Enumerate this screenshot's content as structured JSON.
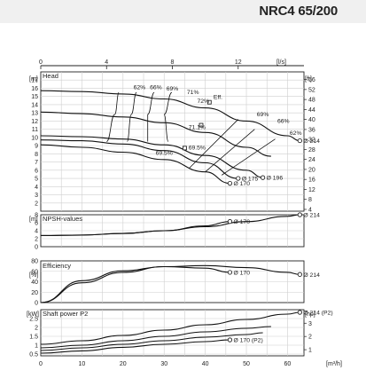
{
  "page": {
    "title": "NRC4 65/200"
  },
  "chart_data": [
    {
      "type": "line",
      "panel": "head",
      "title": "Head",
      "ylabel": "[m]",
      "ylabel_right": "[ft]",
      "xlim": [
        0,
        64
      ],
      "xlim_top": [
        0,
        16
      ],
      "ylim": [
        1,
        18
      ],
      "top_axis_label": "[l/s]",
      "top_ticks": [
        0,
        4,
        8,
        12
      ],
      "y_ticks": [
        2,
        3,
        4,
        5,
        6,
        7,
        8,
        9,
        10,
        11,
        12,
        13,
        14,
        15,
        16,
        17
      ],
      "y_ticks_right": [
        4,
        8,
        12,
        16,
        20,
        24,
        28,
        32,
        36,
        40,
        44,
        48,
        52,
        56
      ],
      "series": [
        {
          "name": "Ø 214",
          "x": [
            0,
            10,
            20,
            30,
            40,
            50,
            60,
            63
          ],
          "y": [
            15.7,
            15.6,
            15.3,
            14.7,
            13.6,
            12.0,
            10.2,
            9.6
          ]
        },
        {
          "name": "",
          "x": [
            0,
            10,
            20,
            30,
            40,
            50,
            56
          ],
          "y": [
            13.1,
            12.9,
            12.5,
            11.8,
            10.6,
            8.8,
            7.7
          ]
        },
        {
          "name": "Ø 196",
          "x": [
            0,
            10,
            20,
            30,
            40,
            50,
            54
          ],
          "y": [
            10.2,
            10.1,
            9.8,
            9.1,
            7.8,
            6.0,
            5.1
          ]
        },
        {
          "name": "Ø 175",
          "x": [
            0,
            10,
            20,
            30,
            40,
            48
          ],
          "y": [
            9.7,
            9.6,
            9.2,
            8.4,
            6.9,
            5.0
          ]
        },
        {
          "name": "Ø 170",
          "x": [
            0,
            10,
            20,
            30,
            40,
            46
          ],
          "y": [
            9.1,
            8.8,
            8.2,
            7.3,
            5.8,
            4.4
          ]
        }
      ],
      "efficiency_labels": [
        "62%",
        "66%",
        "69%",
        "71%",
        "72%",
        "71.1%",
        "69%",
        "66%",
        "62%",
        "69.5%",
        "69.5%"
      ],
      "diameter_labels": [
        "Ø 214",
        "Ø 196",
        "Ø 175",
        "Ø 170"
      ],
      "annotation": "Eff."
    },
    {
      "type": "line",
      "panel": "npsh",
      "title": "NPSH-values",
      "ylabel": "[m]",
      "ylim": [
        0,
        8
      ],
      "y_ticks": [
        0,
        2,
        4,
        6,
        8
      ],
      "series": [
        {
          "name": "Ø 214",
          "x": [
            0,
            10,
            20,
            30,
            40,
            50,
            60,
            63
          ],
          "y": [
            2.8,
            2.9,
            3.3,
            4.0,
            5.0,
            6.3,
            7.6,
            8.0
          ]
        },
        {
          "name": "Ø 170",
          "x": [
            0,
            10,
            20,
            30,
            40,
            46
          ],
          "y": [
            2.8,
            2.9,
            3.3,
            4.0,
            5.2,
            6.3
          ]
        }
      ]
    },
    {
      "type": "line",
      "panel": "efficiency",
      "title": "Efficiency",
      "ylabel": "[%]",
      "ylim": [
        0,
        80
      ],
      "y_ticks": [
        0,
        20,
        40,
        60,
        80
      ],
      "series": [
        {
          "name": "Ø 214",
          "x": [
            0,
            10,
            20,
            30,
            40,
            50,
            60,
            63
          ],
          "y": [
            0,
            38,
            58,
            69,
            71,
            67,
            58,
            54
          ]
        },
        {
          "name": "Ø 170",
          "x": [
            0,
            10,
            20,
            30,
            40,
            46
          ],
          "y": [
            0,
            42,
            61,
            69,
            66,
            58
          ]
        }
      ]
    },
    {
      "type": "line",
      "panel": "power",
      "title": "Shaft power P2",
      "ylabel": "[kW]",
      "ylabel_right": "[hp]",
      "xlabel": "[m³/h]",
      "ylim": [
        0.4,
        3.0
      ],
      "y_ticks": [
        0.5,
        1,
        1.5,
        2,
        2.5
      ],
      "y_ticks_right": [
        1,
        2,
        3
      ],
      "x_ticks": [
        0,
        10,
        20,
        30,
        40,
        50,
        60
      ],
      "series": [
        {
          "name": "Ø 214 (P2)",
          "x": [
            0,
            10,
            20,
            30,
            40,
            50,
            60,
            63
          ],
          "y": [
            1.05,
            1.25,
            1.55,
            1.85,
            2.15,
            2.45,
            2.75,
            2.85
          ]
        },
        {
          "name": "",
          "x": [
            0,
            10,
            20,
            30,
            40,
            50,
            56
          ],
          "y": [
            0.85,
            1.0,
            1.25,
            1.5,
            1.75,
            1.95,
            2.05
          ]
        },
        {
          "name": "",
          "x": [
            0,
            10,
            20,
            30,
            40,
            50,
            54
          ],
          "y": [
            0.7,
            0.85,
            1.05,
            1.25,
            1.45,
            1.6,
            1.7
          ]
        },
        {
          "name": "Ø 170 (P2)",
          "x": [
            0,
            10,
            20,
            30,
            40,
            46
          ],
          "y": [
            0.55,
            0.68,
            0.88,
            1.05,
            1.2,
            1.3
          ]
        }
      ]
    }
  ]
}
